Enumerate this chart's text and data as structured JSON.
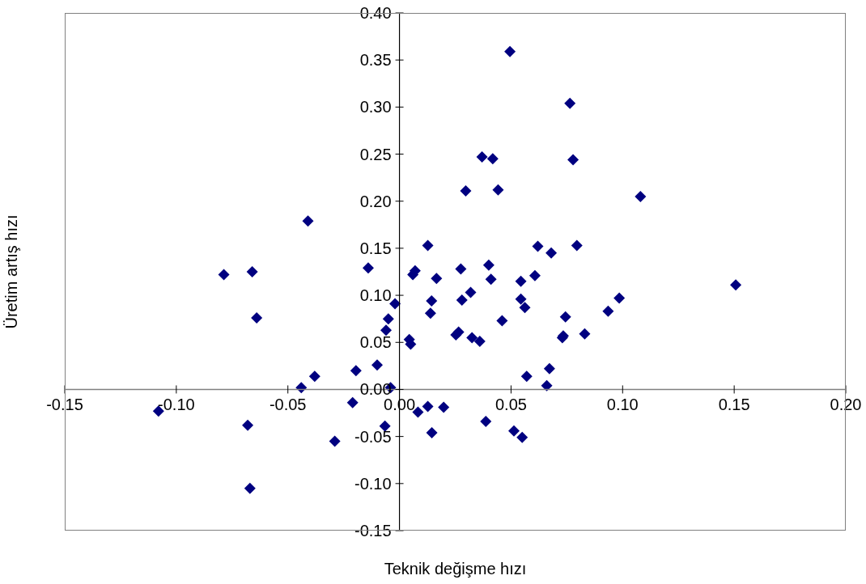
{
  "chart_data": {
    "type": "scatter",
    "xlabel": "Teknik değişme hızı",
    "ylabel": "Üretim artış hızı",
    "x": [
      -0.108,
      -0.0787,
      -0.066,
      -0.064,
      -0.041,
      -0.014,
      -0.002,
      -0.005,
      -0.006,
      -0.01,
      -0.0195,
      -0.038,
      -0.044,
      -0.004,
      -0.021,
      -0.068,
      -0.029,
      -0.0065,
      -0.067,
      0.0044,
      0.005,
      0.007,
      0.006,
      0.0127,
      0.0166,
      0.0275,
      0.04,
      0.041,
      0.062,
      0.068,
      0.0795,
      0.0607,
      0.0544,
      0.0144,
      0.0139,
      0.028,
      0.0319,
      0.0544,
      0.0562,
      0.046,
      0.0744,
      0.0935,
      0.0985,
      0.0265,
      0.0253,
      0.0325,
      0.036,
      0.0734,
      0.073,
      0.083,
      0.057,
      0.0672,
      0.066,
      0.0127,
      0.0198,
      0.0083,
      0.0145,
      0.0387,
      0.0513,
      0.055,
      0.0495,
      0.0764,
      0.037,
      0.0418,
      0.0778,
      0.0297,
      0.0442,
      0.108,
      0.1507
    ],
    "values": [
      -0.023,
      0.122,
      0.125,
      0.076,
      0.179,
      0.129,
      0.091,
      0.075,
      0.063,
      0.026,
      0.02,
      0.014,
      0.002,
      0.002,
      -0.014,
      -0.038,
      -0.055,
      -0.039,
      -0.105,
      0.053,
      0.048,
      0.126,
      0.122,
      0.153,
      0.118,
      0.128,
      0.132,
      0.117,
      0.152,
      0.145,
      0.153,
      0.121,
      0.115,
      0.094,
      0.081,
      0.095,
      0.103,
      0.096,
      0.087,
      0.073,
      0.077,
      0.083,
      0.097,
      0.061,
      0.058,
      0.055,
      0.051,
      0.057,
      0.055,
      0.059,
      0.014,
      0.022,
      0.004,
      -0.018,
      -0.019,
      -0.024,
      -0.046,
      -0.034,
      -0.044,
      -0.051,
      0.359,
      0.304,
      0.247,
      0.245,
      0.244,
      0.211,
      0.212,
      0.205,
      0.111
    ],
    "color": "#000080",
    "marker": "diamond",
    "xlim": [
      -0.15,
      0.2
    ],
    "xticks": [
      {
        "value": -0.15,
        "label": "-0.15"
      },
      {
        "value": -0.1,
        "label": "-0.10"
      },
      {
        "value": -0.05,
        "label": "-0.05"
      },
      {
        "value": 0,
        "label": "0.00"
      },
      {
        "value": 0.05,
        "label": "0.05"
      },
      {
        "value": 0.1,
        "label": "0.10"
      },
      {
        "value": 0.15,
        "label": "0.15"
      },
      {
        "value": 0.2,
        "label": "0.20"
      }
    ],
    "ylim": [
      -0.15,
      0.4
    ],
    "yticks": [
      {
        "value": -0.15,
        "label": "-0.15"
      },
      {
        "value": -0.1,
        "label": "-0.10"
      },
      {
        "value": -0.05,
        "label": "-0.05"
      },
      {
        "value": 0,
        "label": "0.00"
      },
      {
        "value": 0.05,
        "label": "0.05"
      },
      {
        "value": 0.1,
        "label": "0.10"
      },
      {
        "value": 0.15,
        "label": "0.15"
      },
      {
        "value": 0.2,
        "label": "0.20"
      },
      {
        "value": 0.25,
        "label": "0.25"
      },
      {
        "value": 0.3,
        "label": "0.30"
      },
      {
        "value": 0.35,
        "label": "0.35"
      },
      {
        "value": 0.4,
        "label": "0.40"
      }
    ],
    "grid": false,
    "legend": false
  }
}
